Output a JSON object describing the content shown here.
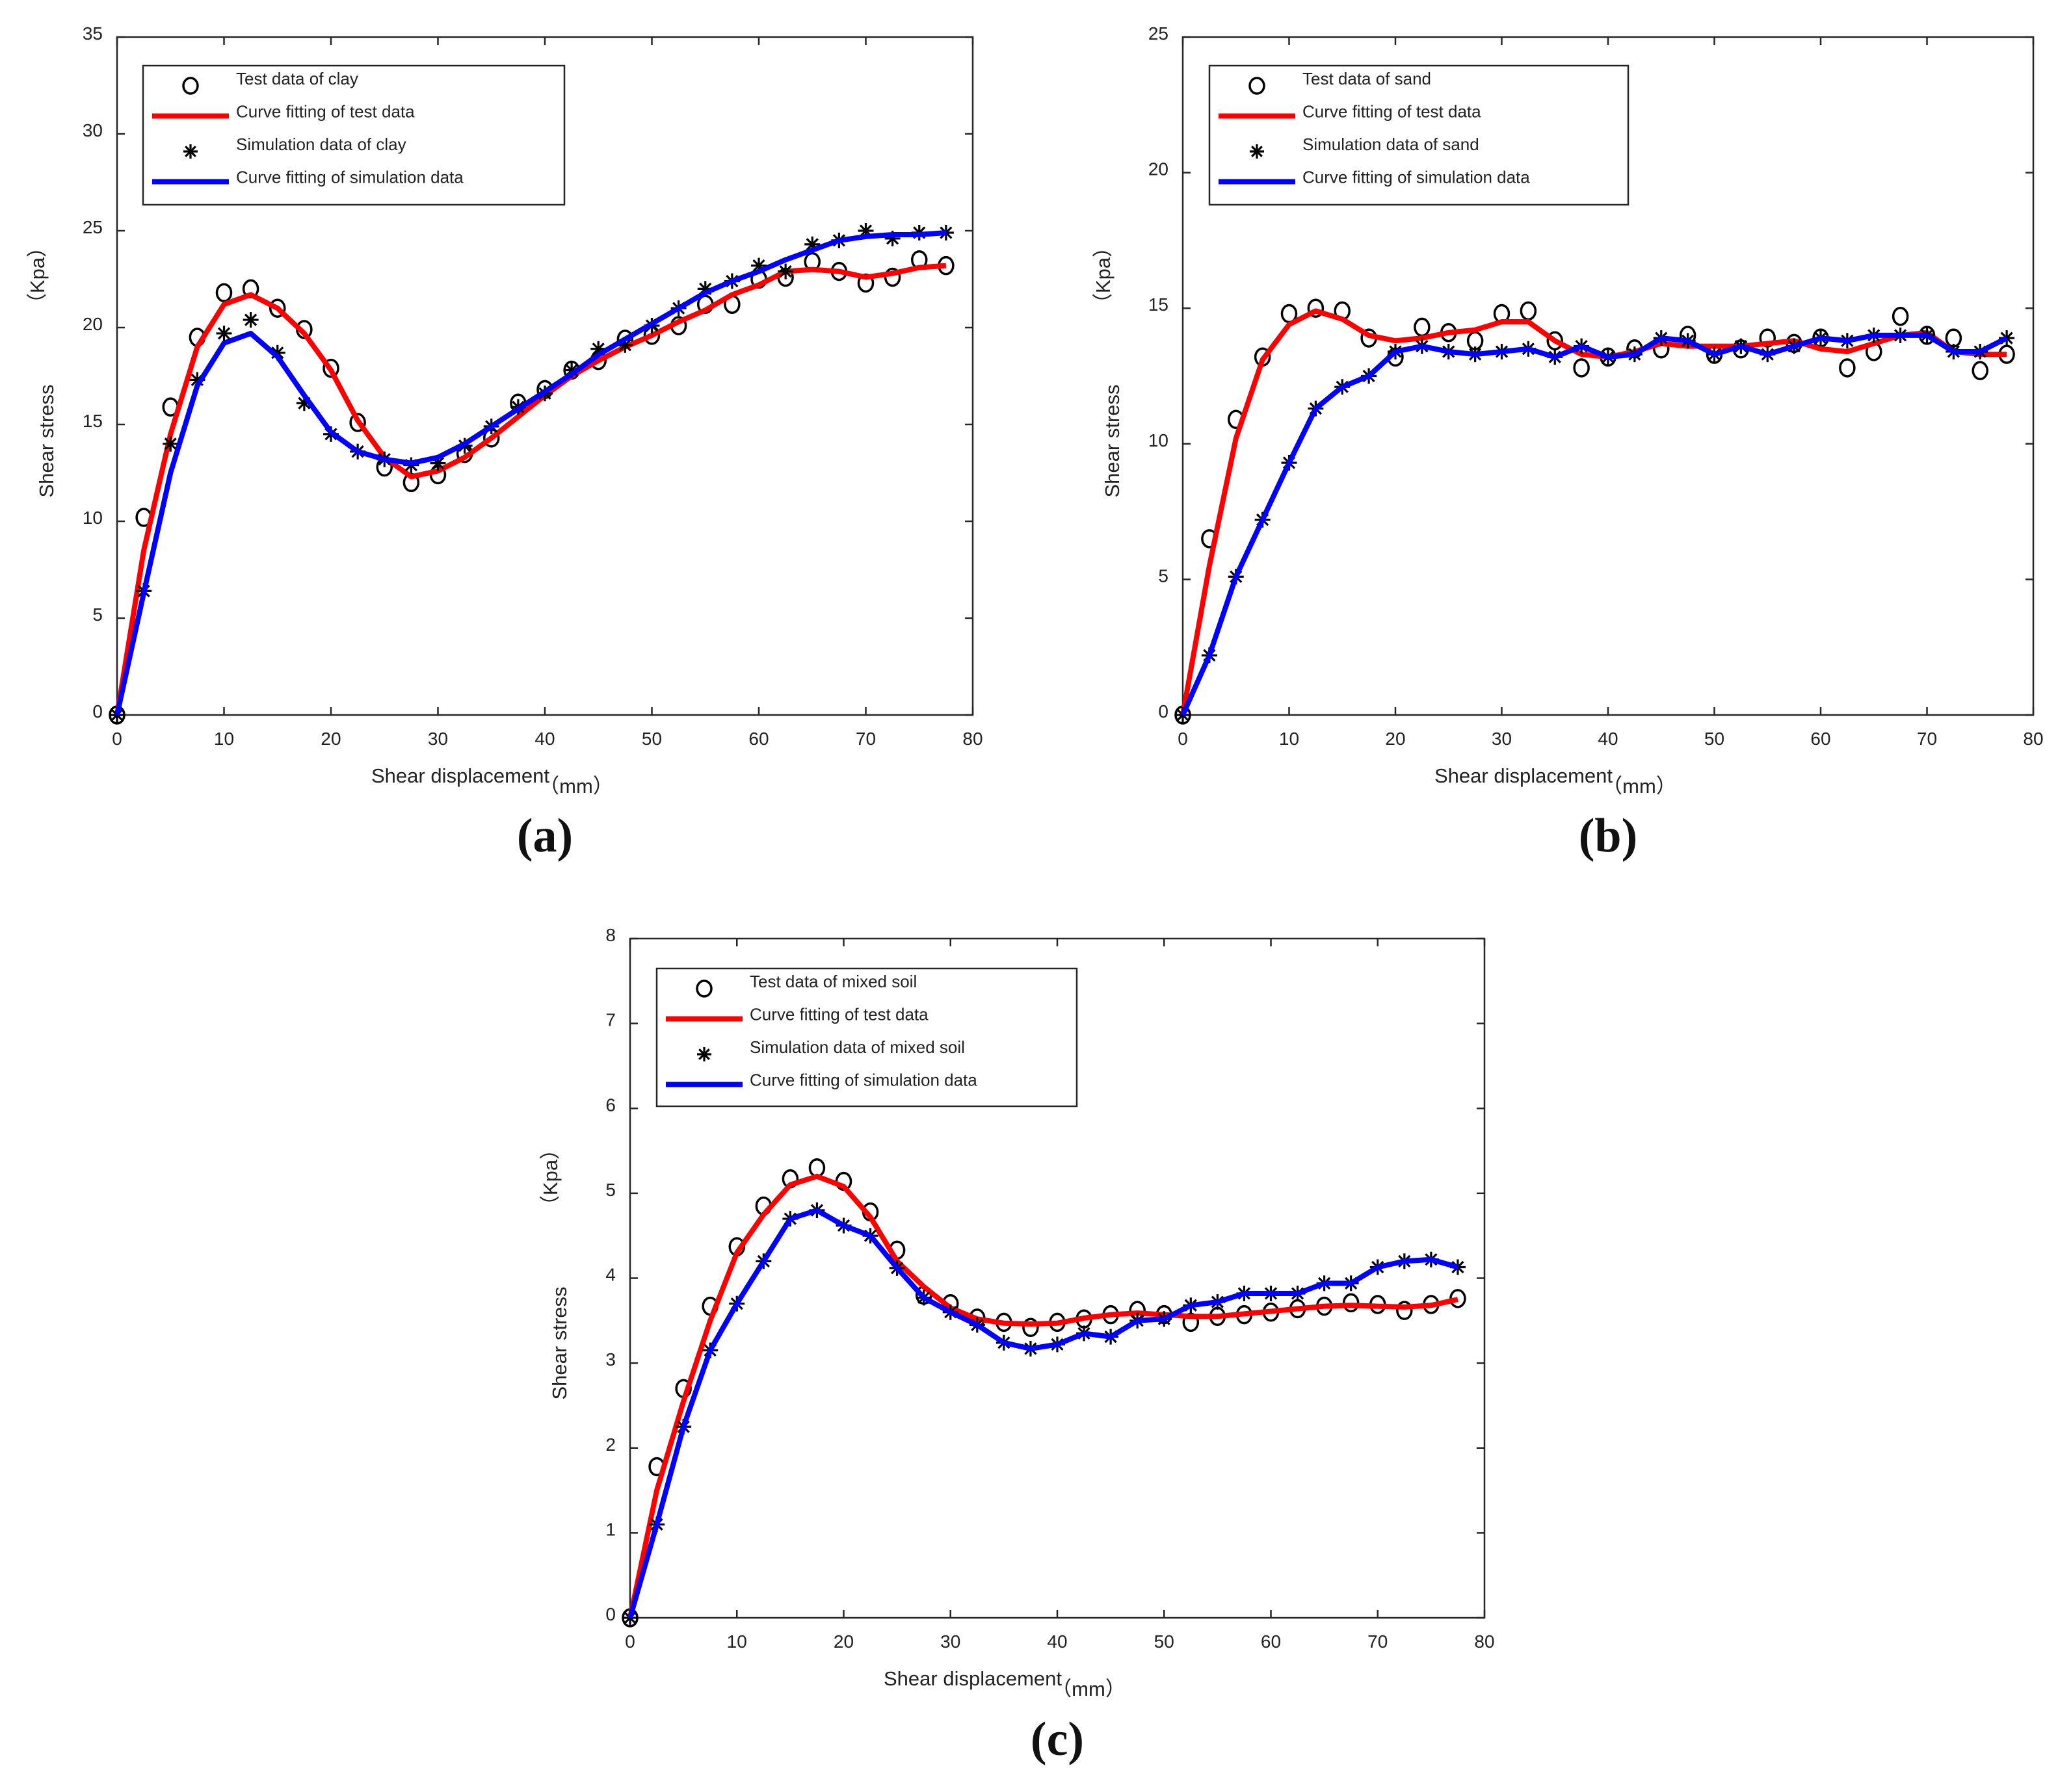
{
  "colors": {
    "test_fit": "#ff0000",
    "sim_fit": "#0000ff",
    "markers": "#000000",
    "axes": "#262626"
  },
  "chart_data": [
    {
      "type": "line",
      "panel_label": "(a)",
      "xlabel": "Shear displacement",
      "xunit": "（mm）",
      "ylabel": "Shear stress",
      "yunit": "（Kpa）",
      "xlim": [
        0,
        80
      ],
      "ylim": [
        0,
        35
      ],
      "xticks": [
        0,
        10,
        20,
        30,
        40,
        50,
        60,
        70,
        80
      ],
      "yticks": [
        0,
        5,
        10,
        15,
        20,
        25,
        30,
        35
      ],
      "legend_position": "top-left",
      "x": [
        0,
        2.5,
        5,
        7.5,
        10,
        12.5,
        15,
        17.5,
        20,
        22.5,
        25,
        27.5,
        30,
        32.5,
        35,
        37.5,
        40,
        42.5,
        45,
        47.5,
        50,
        52.5,
        55,
        57.5,
        60,
        62.5,
        65,
        67.5,
        70,
        72.5,
        75,
        77.5
      ],
      "series": [
        {
          "name": "Test data of clay",
          "kind": "circle",
          "values": [
            0,
            10.2,
            15.9,
            19.5,
            21.8,
            22.0,
            21.0,
            19.9,
            17.9,
            15.1,
            12.8,
            12.0,
            12.4,
            13.5,
            14.3,
            16.1,
            16.8,
            17.8,
            18.3,
            19.4,
            19.6,
            20.1,
            21.2,
            21.2,
            22.5,
            22.6,
            23.4,
            22.9,
            22.3,
            22.6,
            23.5,
            23.2
          ]
        },
        {
          "name": "Curve fitting of test data",
          "kind": "line",
          "color": "#ff0000",
          "values": [
            0,
            8.5,
            14.5,
            19.0,
            21.2,
            21.7,
            21.0,
            19.7,
            17.8,
            15.2,
            13.3,
            12.3,
            12.6,
            13.3,
            14.3,
            15.4,
            16.5,
            17.5,
            18.3,
            19.0,
            19.6,
            20.3,
            20.9,
            21.7,
            22.2,
            22.9,
            23.0,
            22.9,
            22.6,
            22.8,
            23.1,
            23.2
          ]
        },
        {
          "name": "Simulation data of clay",
          "kind": "star",
          "values": [
            0,
            6.4,
            14.0,
            17.3,
            19.7,
            20.4,
            18.7,
            16.1,
            14.5,
            13.6,
            13.2,
            12.9,
            13.0,
            13.9,
            14.9,
            15.9,
            16.6,
            17.8,
            18.9,
            19.1,
            20.1,
            21.0,
            22.0,
            22.4,
            23.2,
            22.9,
            24.3,
            24.5,
            25.0,
            24.6,
            24.9,
            24.9
          ]
        },
        {
          "name": "Curve fitting of simulation data",
          "kind": "line",
          "color": "#0000ff",
          "values": [
            0,
            6.3,
            12.5,
            17.0,
            19.2,
            19.7,
            18.5,
            16.5,
            14.6,
            13.6,
            13.2,
            13.0,
            13.3,
            14.0,
            14.9,
            15.8,
            16.7,
            17.6,
            18.6,
            19.4,
            20.2,
            21.0,
            21.8,
            22.4,
            22.9,
            23.5,
            24.0,
            24.5,
            24.7,
            24.8,
            24.8,
            24.9
          ]
        }
      ]
    },
    {
      "type": "line",
      "panel_label": "(b)",
      "xlabel": "Shear displacement",
      "xunit": "（mm）",
      "ylabel": "Shear stress",
      "yunit": "（Kpa）",
      "xlim": [
        0,
        80
      ],
      "ylim": [
        0,
        25
      ],
      "xticks": [
        0,
        10,
        20,
        30,
        40,
        50,
        60,
        70,
        80
      ],
      "yticks": [
        0,
        5,
        10,
        15,
        20,
        25
      ],
      "legend_position": "top-left",
      "x": [
        0,
        2.5,
        5,
        7.5,
        10,
        12.5,
        15,
        17.5,
        20,
        22.5,
        25,
        27.5,
        30,
        32.5,
        35,
        37.5,
        40,
        42.5,
        45,
        47.5,
        50,
        52.5,
        55,
        57.5,
        60,
        62.5,
        65,
        67.5,
        70,
        72.5,
        75,
        77.5
      ],
      "series": [
        {
          "name": "Test data of sand",
          "kind": "circle",
          "values": [
            0,
            6.5,
            10.9,
            13.2,
            14.8,
            15.0,
            14.9,
            13.9,
            13.2,
            14.3,
            14.1,
            13.8,
            14.8,
            14.9,
            13.8,
            12.8,
            13.2,
            13.5,
            13.5,
            14.0,
            13.3,
            13.5,
            13.9,
            13.7,
            13.9,
            12.8,
            13.4,
            14.7,
            14.0,
            13.9,
            12.7,
            13.3
          ]
        },
        {
          "name": "Curve fitting of test data",
          "kind": "line",
          "color": "#ff0000",
          "values": [
            0,
            5.5,
            10.2,
            13.1,
            14.4,
            14.9,
            14.6,
            14.0,
            13.8,
            13.9,
            14.1,
            14.2,
            14.5,
            14.5,
            13.8,
            13.3,
            13.2,
            13.4,
            13.7,
            13.6,
            13.6,
            13.6,
            13.7,
            13.8,
            13.5,
            13.4,
            13.7,
            14.0,
            14.1,
            13.4,
            13.3,
            13.3
          ]
        },
        {
          "name": "Simulation data of sand",
          "kind": "star",
          "values": [
            0,
            2.2,
            5.1,
            7.2,
            9.3,
            11.3,
            12.1,
            12.5,
            13.4,
            13.6,
            13.4,
            13.3,
            13.4,
            13.5,
            13.2,
            13.6,
            13.2,
            13.3,
            13.9,
            13.8,
            13.3,
            13.6,
            13.3,
            13.6,
            13.9,
            13.8,
            14.0,
            14.0,
            14.0,
            13.4,
            13.4,
            13.9
          ]
        },
        {
          "name": "Curve fitting of simulation data",
          "kind": "line",
          "color": "#0000ff",
          "values": [
            0,
            2.2,
            5.1,
            7.2,
            9.3,
            11.3,
            12.1,
            12.5,
            13.4,
            13.6,
            13.4,
            13.3,
            13.4,
            13.5,
            13.2,
            13.6,
            13.2,
            13.3,
            13.9,
            13.8,
            13.3,
            13.6,
            13.3,
            13.6,
            13.9,
            13.8,
            14.0,
            14.0,
            14.0,
            13.4,
            13.4,
            13.9
          ]
        }
      ]
    },
    {
      "type": "line",
      "panel_label": "(c)",
      "xlabel": "Shear displacement",
      "xunit": "（mm）",
      "ylabel": "Shear stress",
      "yunit": "（Kpa）",
      "xlim": [
        0,
        80
      ],
      "ylim": [
        0,
        8
      ],
      "xticks": [
        0,
        10,
        20,
        30,
        40,
        50,
        60,
        70,
        80
      ],
      "yticks": [
        0,
        1,
        2,
        3,
        4,
        5,
        6,
        7,
        8
      ],
      "legend_position": "top-left",
      "x": [
        0,
        2.5,
        5,
        7.5,
        10,
        12.5,
        15,
        17.5,
        20,
        22.5,
        25,
        27.5,
        30,
        32.5,
        35,
        37.5,
        40,
        42.5,
        45,
        47.5,
        50,
        52.5,
        55,
        57.5,
        60,
        62.5,
        65,
        67.5,
        70,
        72.5,
        75,
        77.5
      ],
      "series": [
        {
          "name": "Test data of mixed soil",
          "kind": "circle",
          "values": [
            0,
            1.78,
            2.7,
            3.67,
            4.37,
            4.85,
            5.17,
            5.3,
            5.14,
            4.78,
            4.33,
            3.8,
            3.7,
            3.53,
            3.48,
            3.42,
            3.48,
            3.52,
            3.57,
            3.62,
            3.57,
            3.48,
            3.55,
            3.57,
            3.6,
            3.64,
            3.67,
            3.71,
            3.69,
            3.62,
            3.69,
            3.76
          ]
        },
        {
          "name": "Curve fitting of test data",
          "kind": "line",
          "color": "#ff0000",
          "values": [
            0,
            1.5,
            2.55,
            3.5,
            4.3,
            4.75,
            5.1,
            5.2,
            5.08,
            4.72,
            4.2,
            3.9,
            3.65,
            3.52,
            3.47,
            3.46,
            3.47,
            3.53,
            3.57,
            3.59,
            3.57,
            3.55,
            3.55,
            3.58,
            3.61,
            3.64,
            3.67,
            3.68,
            3.67,
            3.66,
            3.68,
            3.75
          ]
        },
        {
          "name": "Simulation data of mixed soil",
          "kind": "star",
          "values": [
            0,
            1.1,
            2.25,
            3.15,
            3.7,
            4.2,
            4.7,
            4.8,
            4.62,
            4.5,
            4.12,
            3.77,
            3.6,
            3.45,
            3.24,
            3.17,
            3.22,
            3.35,
            3.31,
            3.5,
            3.52,
            3.68,
            3.72,
            3.82,
            3.82,
            3.82,
            3.94,
            3.94,
            4.13,
            4.2,
            4.22,
            4.13
          ]
        },
        {
          "name": "Curve fitting of simulation data",
          "kind": "line",
          "color": "#0000ff",
          "values": [
            0,
            1.1,
            2.25,
            3.15,
            3.7,
            4.2,
            4.7,
            4.8,
            4.62,
            4.5,
            4.12,
            3.77,
            3.6,
            3.45,
            3.24,
            3.17,
            3.22,
            3.35,
            3.31,
            3.5,
            3.52,
            3.68,
            3.72,
            3.82,
            3.82,
            3.82,
            3.94,
            3.94,
            4.13,
            4.2,
            4.22,
            4.13
          ]
        }
      ]
    }
  ]
}
